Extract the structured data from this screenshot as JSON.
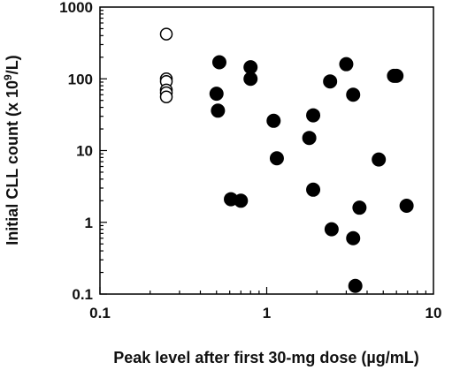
{
  "chart_data": {
    "type": "scatter",
    "title": "",
    "xlabel": "Peak level after first 30-mg dose (µg/mL)",
    "ylabel_main": "Initial CLL count (x 10",
    "ylabel_sup": "9",
    "ylabel_end": "/L)",
    "x_scale": "log",
    "y_scale": "log",
    "xlim": [
      0.1,
      10
    ],
    "ylim": [
      0.1,
      1000
    ],
    "x_ticks": [
      {
        "value": 0.1,
        "label": "0.1"
      },
      {
        "value": 1,
        "label": "1"
      },
      {
        "value": 10,
        "label": "10"
      }
    ],
    "y_ticks": [
      {
        "value": 0.1,
        "label": "0.1"
      },
      {
        "value": 1,
        "label": "1"
      },
      {
        "value": 10,
        "label": "10"
      },
      {
        "value": 100,
        "label": "100"
      },
      {
        "value": 1000,
        "label": "1000"
      }
    ],
    "grid": false,
    "legend": "none",
    "series": [
      {
        "marker": "open-circle",
        "color": "#000000",
        "points": [
          {
            "x": 0.25,
            "y": 420
          },
          {
            "x": 0.25,
            "y": 100
          },
          {
            "x": 0.25,
            "y": 92
          },
          {
            "x": 0.25,
            "y": 70
          },
          {
            "x": 0.25,
            "y": 64
          },
          {
            "x": 0.25,
            "y": 56
          }
        ]
      },
      {
        "marker": "filled-circle",
        "color": "#000000",
        "points": [
          {
            "x": 0.52,
            "y": 170
          },
          {
            "x": 0.5,
            "y": 62
          },
          {
            "x": 0.51,
            "y": 36
          },
          {
            "x": 0.8,
            "y": 145
          },
          {
            "x": 0.8,
            "y": 100
          },
          {
            "x": 0.61,
            "y": 2.1
          },
          {
            "x": 0.7,
            "y": 2.0
          },
          {
            "x": 1.1,
            "y": 26
          },
          {
            "x": 1.15,
            "y": 7.8
          },
          {
            "x": 1.8,
            "y": 15
          },
          {
            "x": 1.9,
            "y": 31
          },
          {
            "x": 1.9,
            "y": 2.85
          },
          {
            "x": 2.4,
            "y": 92
          },
          {
            "x": 2.45,
            "y": 0.8
          },
          {
            "x": 3.0,
            "y": 160
          },
          {
            "x": 3.3,
            "y": 60
          },
          {
            "x": 3.3,
            "y": 0.6
          },
          {
            "x": 3.4,
            "y": 0.13
          },
          {
            "x": 3.6,
            "y": 1.6
          },
          {
            "x": 4.7,
            "y": 7.5
          },
          {
            "x": 5.8,
            "y": 110
          },
          {
            "x": 6.0,
            "y": 110
          },
          {
            "x": 6.9,
            "y": 1.7
          }
        ]
      }
    ]
  }
}
